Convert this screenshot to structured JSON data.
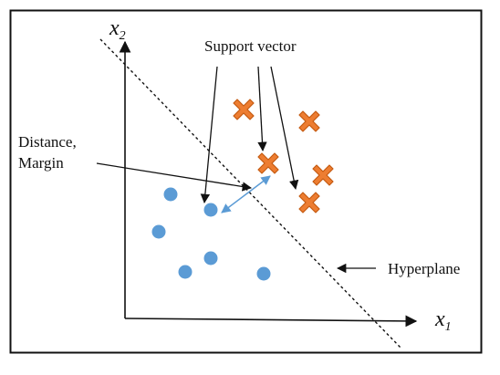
{
  "labels": {
    "support_vector": "Support vector",
    "distance_line1": "Distance,",
    "distance_line2": "Margin",
    "hyperplane": "Hyperplane",
    "x1_main": "x",
    "x1_sub": "1",
    "x2_main": "x",
    "x2_sub": "2"
  },
  "colors": {
    "class_a": "#5b9bd5",
    "class_b": "#ed7d31",
    "class_b_stroke": "#c55a11",
    "margin_arrow": "#5b9bd5",
    "ink": "#111111"
  },
  "markers": {
    "class_a_shape": "circle",
    "class_b_shape": "cross"
  }
}
